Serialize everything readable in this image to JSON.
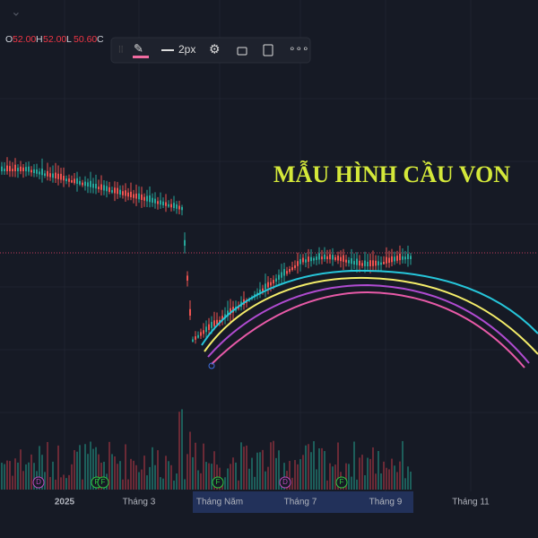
{
  "legend": {
    "ohlc": [
      {
        "key": "O",
        "value": "52.00"
      },
      {
        "key": "H",
        "value": "52.00"
      },
      {
        "key": "L",
        "value": "50.60"
      },
      {
        "key": "C",
        "value": ""
      }
    ]
  },
  "toolbar": {
    "width_label": "2px"
  },
  "annotation": "MẪU HÌNH CẦU VON",
  "events": [
    {
      "x_label": "D"
    },
    {
      "x_label": "F"
    },
    {
      "x_label": "F"
    },
    {
      "x_label": "F"
    },
    {
      "x_label": "D"
    },
    {
      "x_label": "F"
    }
  ],
  "time_axis": [
    "2025",
    "Tháng 3",
    "Tháng Năm",
    "Tháng 7",
    "Tháng 9",
    "Tháng 11"
  ]
}
